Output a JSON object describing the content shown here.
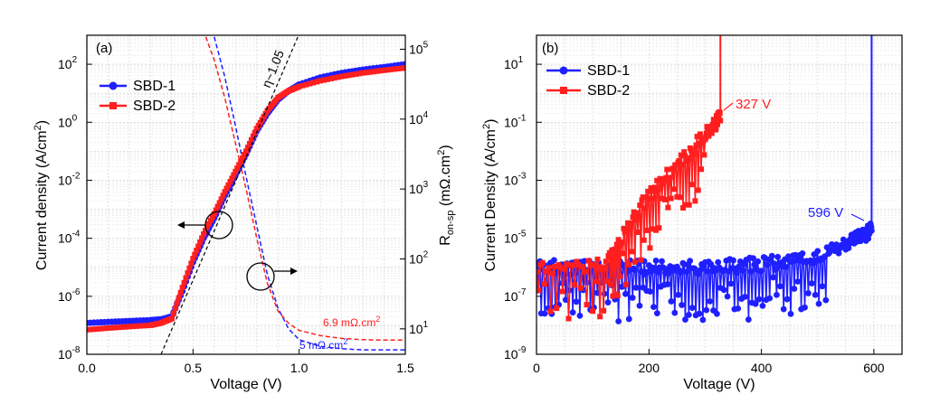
{
  "chart_data": [
    {
      "type": "line",
      "panel_label": "(a)",
      "xlabel": "Voltage (V)",
      "ylabel": "Current density (A/cm",
      "ylabel_sup": "2",
      "ylabel_end": ")",
      "y2label_prefix": "R",
      "y2label_sub": "on-sp",
      "y2label_unit": " (mΩ.cm",
      "y2label_sup": "2",
      "y2label_end": ")",
      "xlim": [
        0,
        1.5
      ],
      "ylim_log10": [
        -8,
        3
      ],
      "y2lim_log10": [
        0.636,
        5.2
      ],
      "y_scale": "log",
      "y2_scale": "log",
      "grid": true,
      "legend_position": "top-left",
      "x_ticks": [
        "0.0",
        "0.5",
        "1.0",
        "1.5"
      ],
      "x_tick_values": [
        0,
        0.5,
        1.0,
        1.5
      ],
      "y_tick_exponents": [
        "-8",
        "-6",
        "-4",
        "-2",
        "0",
        "2"
      ],
      "y2_ticks": [
        "10",
        "10",
        "10",
        "10",
        "10"
      ],
      "y2_tick_exponents": [
        "1",
        "2",
        "3",
        "4",
        "5"
      ],
      "series": [
        {
          "name": "SBD-1",
          "color": "#1f1fff",
          "marker": "circle",
          "x": [
            0.0,
            0.1,
            0.2,
            0.3,
            0.35,
            0.4,
            0.45,
            0.5,
            0.55,
            0.6,
            0.65,
            0.7,
            0.75,
            0.8,
            0.85,
            0.9,
            0.95,
            1.0,
            1.1,
            1.2,
            1.3,
            1.4,
            1.5
          ],
          "y": [
            1.2e-07,
            1.3e-07,
            1.4e-07,
            1.5e-07,
            1.6e-07,
            2e-07,
            1.5e-06,
            1.5e-05,
            0.0001,
            0.0005,
            0.003,
            0.015,
            0.08,
            0.5,
            2.0,
            6.0,
            12,
            20,
            35,
            50,
            65,
            80,
            100
          ]
        },
        {
          "name": "SBD-2",
          "color": "#ff1f1f",
          "marker": "square",
          "x": [
            0.0,
            0.1,
            0.2,
            0.3,
            0.35,
            0.4,
            0.45,
            0.5,
            0.55,
            0.6,
            0.65,
            0.7,
            0.75,
            0.8,
            0.85,
            0.9,
            0.95,
            1.0,
            1.1,
            1.2,
            1.3,
            1.4,
            1.5
          ],
          "y": [
            7e-08,
            8e-08,
            9e-08,
            1e-07,
            1.2e-07,
            1.7e-07,
            2e-06,
            2e-05,
            0.00014,
            0.0007,
            0.004,
            0.02,
            0.1,
            0.6,
            2.5,
            7.0,
            12,
            17,
            27,
            38,
            50,
            62,
            75
          ]
        }
      ],
      "ron_curves": [
        {
          "name": "SBD-1 Ron",
          "color": "#1f1fff",
          "dash": true,
          "x": [
            0.6,
            0.65,
            0.7,
            0.75,
            0.8,
            0.85,
            0.9,
            0.95,
            1.0,
            1.1,
            1.2,
            1.3,
            1.4,
            1.5
          ],
          "y": [
            150000,
            40000,
            8000,
            1500,
            300,
            60,
            20,
            10,
            7,
            5.6,
            5.2,
            5.0,
            5.0,
            5.0
          ]
        },
        {
          "name": "SBD-2 Ron",
          "color": "#ff1f1f",
          "dash": true,
          "x": [
            0.56,
            0.6,
            0.65,
            0.7,
            0.75,
            0.8,
            0.85,
            0.9,
            0.95,
            1.0,
            1.1,
            1.2,
            1.3,
            1.4,
            1.5
          ],
          "y": [
            150000,
            70000,
            20000,
            4500,
            1000,
            200,
            45,
            18,
            12,
            9.5,
            8.0,
            7.3,
            7.0,
            6.9,
            6.9
          ]
        }
      ],
      "annotations": {
        "ideality": "η~1.05",
        "ron1": "5 mΩ.cm",
        "ron1_sup": "2",
        "ron2": "6.9 mΩ.cm",
        "ron2_sup": "2"
      }
    },
    {
      "type": "line",
      "panel_label": "(b)",
      "xlabel": "Voltage (V)",
      "ylabel": "Current Density (A/cm",
      "ylabel_sup": "2",
      "ylabel_end": ")",
      "xlim": [
        0,
        650
      ],
      "ylim_log10": [
        -9,
        2
      ],
      "y_scale": "log",
      "grid": true,
      "legend_position": "top-left",
      "x_ticks": [
        "0",
        "200",
        "400",
        "600"
      ],
      "x_tick_values": [
        0,
        200,
        400,
        600
      ],
      "y_tick_exponents": [
        "-9",
        "-7",
        "-5",
        "-3",
        "-1",
        "1"
      ],
      "series": [
        {
          "name": "SBD-1",
          "color": "#1f1fff",
          "marker": "circle",
          "x": [
            0,
            50,
            100,
            150,
            200,
            250,
            300,
            350,
            400,
            450,
            500,
            550,
            580,
            596
          ],
          "y": [
            1e-06,
            1e-06,
            1e-06,
            1e-06,
            1e-06,
            1e-06,
            1e-06,
            1.1e-06,
            1.3e-06,
            1.6e-06,
            2.5e-06,
            6e-06,
            1.2e-05,
            2e-05
          ]
        },
        {
          "name": "SBD-2",
          "color": "#ff1f1f",
          "marker": "square",
          "x": [
            0,
            50,
            100,
            130,
            150,
            175,
            200,
            225,
            250,
            275,
            300,
            315,
            327
          ],
          "y": [
            1e-06,
            1e-06,
            1e-06,
            2e-06,
            1e-05,
            6e-05,
            0.0003,
            0.001,
            0.003,
            0.01,
            0.04,
            0.08,
            0.15
          ]
        }
      ],
      "annotations": {
        "bv1": "596 V",
        "bv2": "327 V"
      }
    }
  ]
}
